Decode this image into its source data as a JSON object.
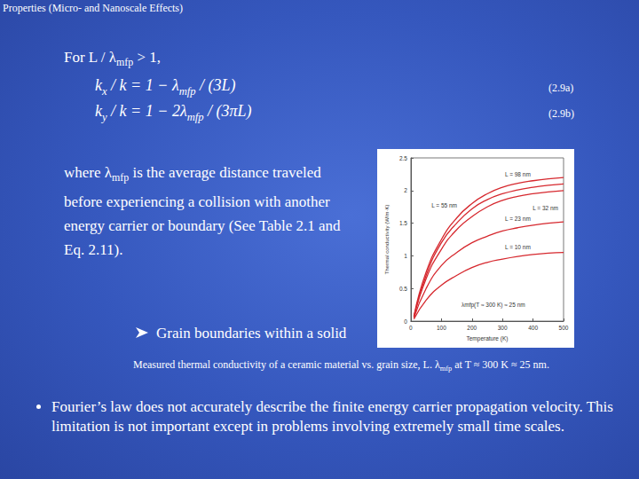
{
  "header": {
    "title": "Properties (Micro- and Nanoscale Effects)"
  },
  "condition": [
    {
      "t": "For L / λ"
    },
    {
      "sub": "mfp"
    },
    {
      "t": " > 1,"
    }
  ],
  "equations": [
    {
      "formula": [
        {
          "t": "k"
        },
        {
          "sub": "x"
        },
        {
          "t": " / k = 1 − λ"
        },
        {
          "sub": "mfp"
        },
        {
          "t": " / (3L)"
        }
      ],
      "number": "(2.9a)"
    },
    {
      "formula": [
        {
          "t": "k"
        },
        {
          "sub": "y"
        },
        {
          "t": " / k = 1 − 2λ"
        },
        {
          "sub": "mfp"
        },
        {
          "t": " / (3πL)"
        }
      ],
      "number": "(2.9b)"
    }
  ],
  "paragraph": [
    {
      "t": "where λ"
    },
    {
      "sub": "mfp"
    },
    {
      "t": " is the average distance traveled before experiencing a collision with another energy carrier or boundary (See Table 2.1 and Eq. 2.11)."
    }
  ],
  "sub_bullet": "Grain boundaries within a solid",
  "caption": [
    {
      "t": "Measured thermal conductivity of a ceramic material vs. grain size, "
    },
    {
      "t": "L. λ"
    },
    {
      "sub": "mfp"
    },
    {
      "t": " at T ≈ 300 K ≈ 25 nm."
    }
  ],
  "bullets": [
    "Fourier’s law does not accurately describe the finite energy carrier propagation velocity.  This limitation is not important except in problems involving extremely small time scales."
  ],
  "chart_data": {
    "type": "line",
    "x_label": "Temperature (K)",
    "y_label": "Thermal conductivity (W/m·K)",
    "x": [
      10,
      50,
      100,
      150,
      200,
      250,
      300,
      350,
      400,
      450,
      500
    ],
    "xlim": [
      0,
      500
    ],
    "xticks": [
      0,
      100,
      200,
      300,
      400,
      500
    ],
    "ylim": [
      0,
      2.5
    ],
    "yticks": [
      0,
      0.5,
      1,
      1.5,
      2,
      2.5
    ],
    "color": "#d6282e",
    "grid": false,
    "annotations": [
      "λmfp(T ≈ 300 K) ≈ 25 nm"
    ],
    "series": [
      {
        "name": "L = 98 nm",
        "values": [
          0.08,
          0.75,
          1.25,
          1.58,
          1.8,
          1.95,
          2.05,
          2.11,
          2.15,
          2.18,
          2.2
        ]
      },
      {
        "name": "L = 55 nm",
        "values": [
          0.07,
          0.7,
          1.2,
          1.5,
          1.72,
          1.86,
          1.95,
          2.01,
          2.05,
          2.08,
          2.1
        ]
      },
      {
        "name": "L = 32 nm",
        "values": [
          0.06,
          0.65,
          1.1,
          1.4,
          1.6,
          1.75,
          1.85,
          1.91,
          1.95,
          1.98,
          2.0
        ]
      },
      {
        "name": "L = 23 nm",
        "values": [
          0.05,
          0.5,
          0.85,
          1.05,
          1.2,
          1.3,
          1.38,
          1.43,
          1.47,
          1.5,
          1.52
        ]
      },
      {
        "name": "L = 10 nm",
        "values": [
          0.03,
          0.32,
          0.55,
          0.7,
          0.82,
          0.9,
          0.95,
          0.99,
          1.02,
          1.04,
          1.05
        ]
      }
    ]
  }
}
